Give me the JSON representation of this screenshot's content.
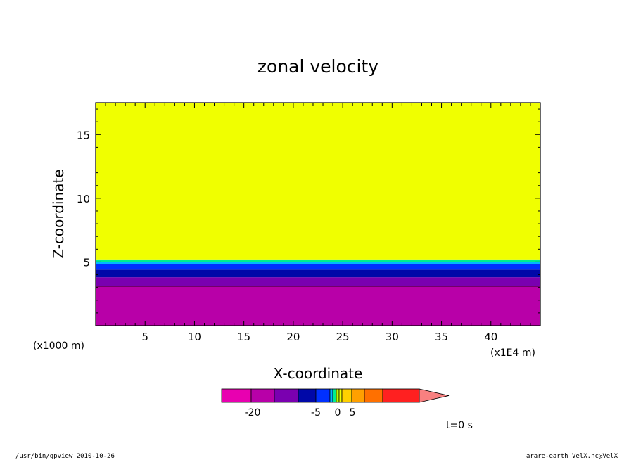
{
  "chart_data": {
    "type": "heatmap",
    "title": "zonal velocity",
    "xlabel": "X-coordinate",
    "ylabel": "Z-coordinate",
    "x_unit": "(x1E4 m)",
    "y_unit": "(x1000 m)",
    "xlim": [
      0,
      45
    ],
    "ylim": [
      0,
      17.5
    ],
    "x_ticks": [
      "5",
      "10",
      "15",
      "20",
      "25",
      "30",
      "35",
      "40"
    ],
    "y_ticks": [
      "5",
      "10",
      "15"
    ],
    "x_tick_values": [
      5,
      10,
      15,
      20,
      25,
      30,
      35,
      40
    ],
    "y_tick_values": [
      5,
      10,
      15
    ],
    "layers": [
      {
        "z_from": 0,
        "z_to": 3.1,
        "color": "#b800a8"
      },
      {
        "z_from": 3.1,
        "z_to": 3.8,
        "color": "#7a00b0"
      },
      {
        "z_from": 3.8,
        "z_to": 4.4,
        "color": "#0008a8"
      },
      {
        "z_from": 4.4,
        "z_to": 4.85,
        "color": "#0030ff"
      },
      {
        "z_from": 4.85,
        "z_to": 5.0,
        "color": "#00b8ff"
      },
      {
        "z_from": 5.0,
        "z_to": 5.2,
        "color": "#00ee90"
      },
      {
        "z_from": 5.2,
        "z_to": 17.5,
        "color": "#f0ff00"
      }
    ],
    "contour_z": [
      3.1
    ],
    "colorbar": {
      "colors": [
        "#e800b0",
        "#b800a8",
        "#7a00b0",
        "#0008a8",
        "#0030ff",
        "#00b8ff",
        "#00ee90",
        "#b8ff00",
        "#f0ff00",
        "#ffd000",
        "#ffa000",
        "#ff7000",
        "#ff2020",
        "#f88080"
      ],
      "labels": [
        "-20",
        "-5",
        "0",
        "5"
      ]
    },
    "time_label": "t=0 s"
  },
  "footer": {
    "left": "/usr/bin/gpview  2010-10-26",
    "right": "arare-earth_VelX.nc@VelX"
  }
}
